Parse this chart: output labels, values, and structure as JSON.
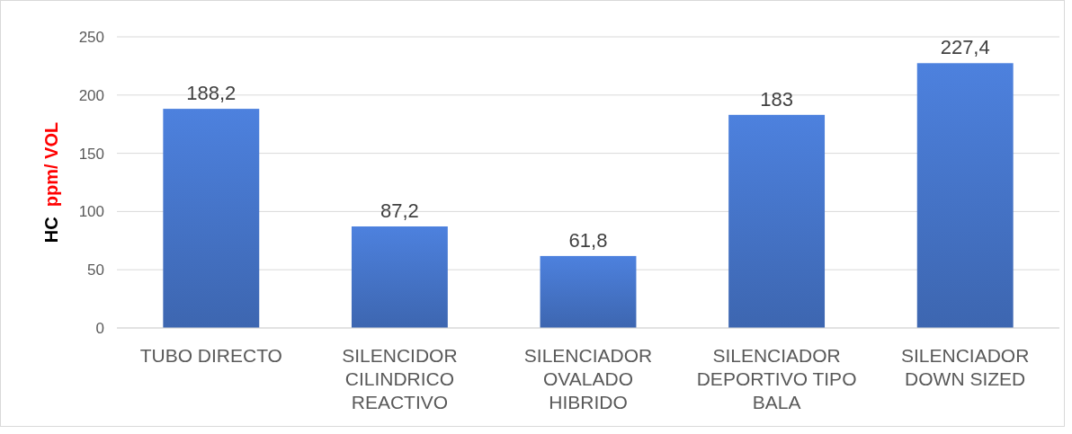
{
  "chart_data": {
    "type": "bar",
    "ylabel": "HC  ppm/ VOL",
    "categories": [
      "TUBO DIRECTO",
      "SILENCIDOR CILINDRICO REACTIVO",
      "SILENCIADOR OVALADO HIBRIDO",
      "SILENCIADOR DEPORTIVO TIPO BALA",
      "SILENCIADOR DOWN SIZED"
    ],
    "values": [
      188.2,
      87.2,
      61.8,
      183,
      227.4
    ],
    "value_labels": [
      "188,2",
      "87,2",
      "61,8",
      "183",
      "227,4"
    ],
    "color": "#4472c4",
    "ylim": [
      0,
      250
    ],
    "yticks": [
      0,
      50,
      100,
      150,
      200,
      250
    ],
    "grid": "y"
  }
}
